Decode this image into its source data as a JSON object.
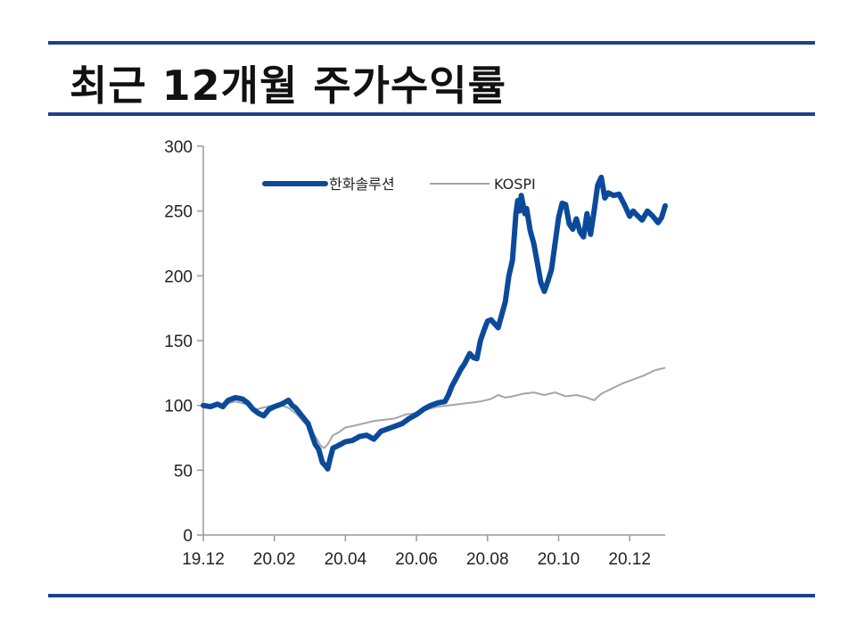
{
  "header": {
    "title": "최근 12개월 주가수익률"
  },
  "chart_data": {
    "type": "line",
    "title": "최근 12개월 주가수익률",
    "xlabel": "",
    "ylabel": "",
    "ylim": [
      0,
      300
    ],
    "yticks": [
      0,
      50,
      100,
      150,
      200,
      250,
      300
    ],
    "yticklabels": [
      "0",
      "50",
      "100",
      "150",
      "200",
      "250",
      "300"
    ],
    "xlim": [
      0,
      12.2
    ],
    "xticks": [
      0,
      2,
      4,
      6,
      8,
      10,
      12
    ],
    "xticklabels": [
      "19.12",
      "20.02",
      "20.04",
      "20.06",
      "20.08",
      "20.10",
      "20.12"
    ],
    "legend": {
      "position": "top-right"
    },
    "colors": {
      "hanwha": "#0b4a9b",
      "kospi": "#a6a6a6",
      "axis": "#999999",
      "rule": "#1f3f8f"
    },
    "series": [
      {
        "name": "한화솔루션",
        "points": [
          [
            0,
            100
          ],
          [
            0.2,
            99
          ],
          [
            0.4,
            101
          ],
          [
            0.55,
            99
          ],
          [
            0.7,
            104
          ],
          [
            0.9,
            106
          ],
          [
            1.1,
            105
          ],
          [
            1.25,
            102
          ],
          [
            1.4,
            97
          ],
          [
            1.55,
            94
          ],
          [
            1.7,
            92
          ],
          [
            1.85,
            97
          ],
          [
            2.0,
            99
          ],
          [
            2.2,
            101
          ],
          [
            2.4,
            104
          ],
          [
            2.5,
            100
          ],
          [
            2.6,
            98
          ],
          [
            2.8,
            91
          ],
          [
            2.95,
            86
          ],
          [
            3.05,
            78
          ],
          [
            3.15,
            70
          ],
          [
            3.25,
            66
          ],
          [
            3.35,
            56
          ],
          [
            3.45,
            53
          ],
          [
            3.5,
            51
          ],
          [
            3.58,
            60
          ],
          [
            3.65,
            67
          ],
          [
            3.8,
            69
          ],
          [
            4.0,
            72
          ],
          [
            4.2,
            73
          ],
          [
            4.4,
            76
          ],
          [
            4.6,
            77
          ],
          [
            4.8,
            74
          ],
          [
            5.0,
            80
          ],
          [
            5.2,
            82
          ],
          [
            5.4,
            84
          ],
          [
            5.6,
            86
          ],
          [
            5.8,
            90
          ],
          [
            6.0,
            93
          ],
          [
            6.2,
            97
          ],
          [
            6.4,
            100
          ],
          [
            6.6,
            102
          ],
          [
            6.8,
            103
          ],
          [
            6.9,
            108
          ],
          [
            7.0,
            115
          ],
          [
            7.1,
            120
          ],
          [
            7.25,
            128
          ],
          [
            7.35,
            132
          ],
          [
            7.5,
            140
          ],
          [
            7.6,
            137
          ],
          [
            7.7,
            136
          ],
          [
            7.8,
            150
          ],
          [
            7.9,
            158
          ],
          [
            8.0,
            165
          ],
          [
            8.1,
            166
          ],
          [
            8.2,
            163
          ],
          [
            8.3,
            160
          ],
          [
            8.4,
            170
          ],
          [
            8.5,
            180
          ],
          [
            8.6,
            200
          ],
          [
            8.7,
            212
          ],
          [
            8.75,
            230
          ],
          [
            8.8,
            248
          ],
          [
            8.85,
            258
          ],
          [
            8.9,
            250
          ],
          [
            8.95,
            262
          ],
          [
            9.0,
            255
          ],
          [
            9.05,
            248
          ],
          [
            9.1,
            252
          ],
          [
            9.2,
            235
          ],
          [
            9.3,
            225
          ],
          [
            9.4,
            210
          ],
          [
            9.5,
            195
          ],
          [
            9.6,
            188
          ],
          [
            9.7,
            196
          ],
          [
            9.8,
            205
          ],
          [
            9.9,
            225
          ],
          [
            10.0,
            245
          ],
          [
            10.1,
            256
          ],
          [
            10.2,
            255
          ],
          [
            10.3,
            240
          ],
          [
            10.4,
            236
          ],
          [
            10.5,
            244
          ],
          [
            10.6,
            234
          ],
          [
            10.7,
            230
          ],
          [
            10.8,
            248
          ],
          [
            10.9,
            232
          ],
          [
            11.0,
            250
          ],
          [
            11.1,
            270
          ],
          [
            11.2,
            276
          ],
          [
            11.3,
            260
          ],
          [
            11.4,
            264
          ],
          [
            11.55,
            262
          ],
          [
            11.7,
            263
          ],
          [
            11.85,
            255
          ],
          [
            12.0,
            246
          ],
          [
            12.1,
            250
          ],
          [
            12.2,
            247
          ],
          [
            12.35,
            243
          ],
          [
            12.5,
            250
          ],
          [
            12.65,
            246
          ],
          [
            12.8,
            241
          ],
          [
            12.9,
            245
          ],
          [
            13.0,
            254
          ]
        ]
      },
      {
        "name": "KOSPI",
        "points": [
          [
            0,
            100
          ],
          [
            0.3,
            99
          ],
          [
            0.6,
            101
          ],
          [
            0.9,
            103
          ],
          [
            1.2,
            101
          ],
          [
            1.5,
            97
          ],
          [
            1.8,
            99
          ],
          [
            2.1,
            101
          ],
          [
            2.4,
            98
          ],
          [
            2.6,
            94
          ],
          [
            2.8,
            88
          ],
          [
            3.0,
            82
          ],
          [
            3.2,
            74
          ],
          [
            3.3,
            69
          ],
          [
            3.4,
            67
          ],
          [
            3.5,
            70
          ],
          [
            3.65,
            77
          ],
          [
            3.8,
            79
          ],
          [
            4.0,
            83
          ],
          [
            4.2,
            84
          ],
          [
            4.5,
            86
          ],
          [
            4.8,
            88
          ],
          [
            5.1,
            89
          ],
          [
            5.4,
            90
          ],
          [
            5.7,
            93
          ],
          [
            6.0,
            94
          ],
          [
            6.3,
            97
          ],
          [
            6.6,
            99
          ],
          [
            6.9,
            100
          ],
          [
            7.2,
            101
          ],
          [
            7.5,
            102
          ],
          [
            7.8,
            103
          ],
          [
            8.1,
            105
          ],
          [
            8.3,
            108
          ],
          [
            8.5,
            106
          ],
          [
            8.7,
            107
          ],
          [
            9.0,
            109
          ],
          [
            9.3,
            110
          ],
          [
            9.6,
            108
          ],
          [
            9.9,
            110
          ],
          [
            10.2,
            107
          ],
          [
            10.5,
            108
          ],
          [
            10.8,
            106
          ],
          [
            11.0,
            104
          ],
          [
            11.2,
            109
          ],
          [
            11.5,
            113
          ],
          [
            11.8,
            117
          ],
          [
            12.1,
            120
          ],
          [
            12.4,
            123
          ],
          [
            12.7,
            127
          ],
          [
            13.0,
            129
          ]
        ]
      }
    ]
  }
}
